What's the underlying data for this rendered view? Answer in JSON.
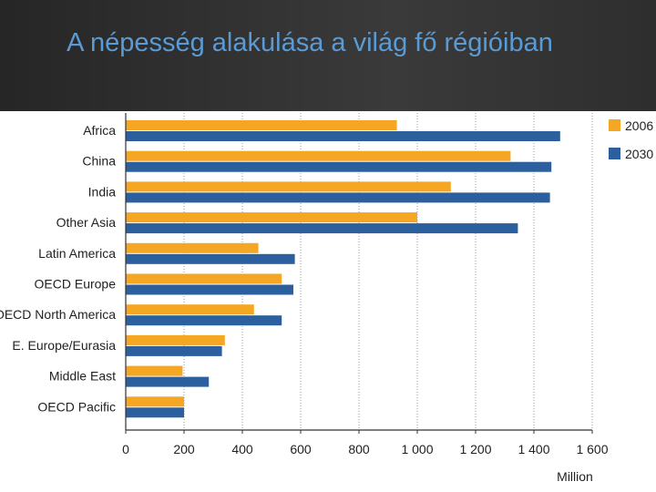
{
  "title": "A népesség alakulása a világ fő régióiban",
  "chart_data": {
    "type": "bar",
    "orientation": "horizontal",
    "categories": [
      "Africa",
      "China",
      "India",
      "Other Asia",
      "Latin America",
      "OECD Europe",
      "OECD North America",
      "E. Europe/Eurasia",
      "Middle East",
      "OECD Pacific"
    ],
    "series": [
      {
        "name": "2006",
        "color": "#f5a623",
        "values": [
          930,
          1320,
          1115,
          1000,
          455,
          535,
          440,
          340,
          195,
          200
        ]
      },
      {
        "name": "2030",
        "color": "#2b5f9e",
        "values": [
          1490,
          1460,
          1455,
          1345,
          580,
          575,
          535,
          330,
          285,
          200
        ]
      }
    ],
    "x_ticks": [
      "0",
      "200",
      "400",
      "600",
      "800",
      "1 000",
      "1 200",
      "1 400",
      "1 600"
    ],
    "xlim": [
      0,
      1600
    ],
    "xlabel": "Million",
    "grid": "vertical dotted",
    "legend_position": "top-right"
  }
}
